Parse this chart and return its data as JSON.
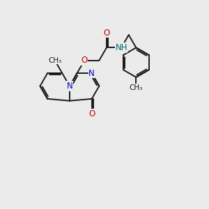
{
  "bg_color": "#ebebeb",
  "bond_color": "#1a1a1a",
  "bond_width": 1.4,
  "atom_colors": {
    "N": "#0000cc",
    "O": "#cc0000",
    "NH": "#007070",
    "C": "#1a1a1a"
  },
  "font_size": 8.5,
  "font_size_small": 7.5
}
